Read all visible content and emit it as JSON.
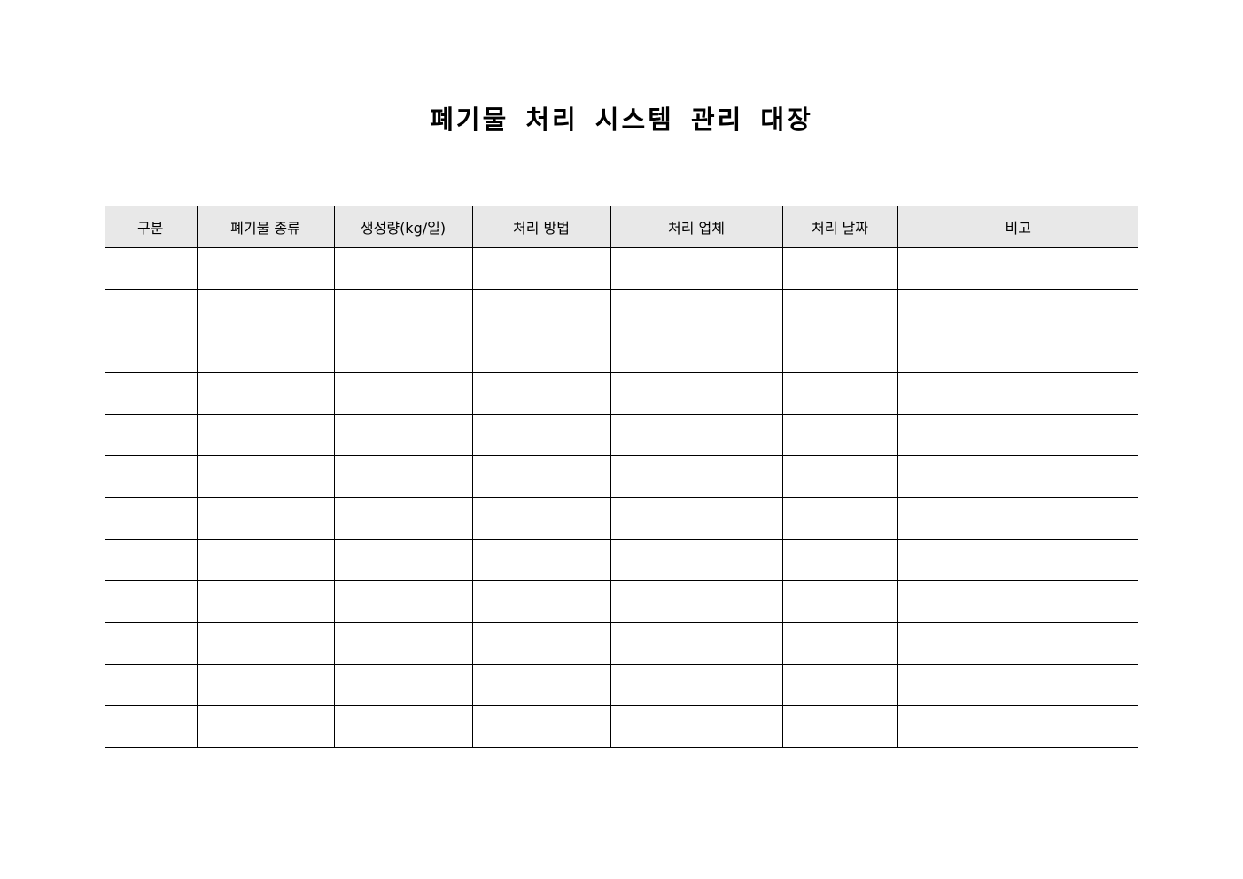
{
  "document": {
    "title": "폐기물 처리 시스템 관리 대장",
    "table": {
      "headers": [
        "구분",
        "폐기물 종류",
        "생성량(kg/일)",
        "처리 방법",
        "처리 업체",
        "처리 날짜",
        "비고"
      ],
      "rows": [
        [
          "",
          "",
          "",
          "",
          "",
          "",
          ""
        ],
        [
          "",
          "",
          "",
          "",
          "",
          "",
          ""
        ],
        [
          "",
          "",
          "",
          "",
          "",
          "",
          ""
        ],
        [
          "",
          "",
          "",
          "",
          "",
          "",
          ""
        ],
        [
          "",
          "",
          "",
          "",
          "",
          "",
          ""
        ],
        [
          "",
          "",
          "",
          "",
          "",
          "",
          ""
        ],
        [
          "",
          "",
          "",
          "",
          "",
          "",
          ""
        ],
        [
          "",
          "",
          "",
          "",
          "",
          "",
          ""
        ],
        [
          "",
          "",
          "",
          "",
          "",
          "",
          ""
        ],
        [
          "",
          "",
          "",
          "",
          "",
          "",
          ""
        ],
        [
          "",
          "",
          "",
          "",
          "",
          "",
          ""
        ],
        [
          "",
          "",
          "",
          "",
          "",
          "",
          ""
        ]
      ]
    },
    "colors": {
      "header_bg": "#e8e8e8",
      "border": "#000000"
    }
  }
}
